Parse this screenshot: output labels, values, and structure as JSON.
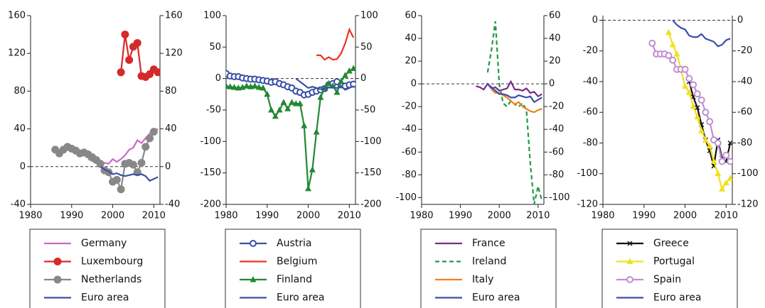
{
  "chart_data": [
    {
      "type": "line",
      "xlim": [
        1980,
        2011.5
      ],
      "xticks": [
        1980,
        1990,
        2000,
        2010
      ],
      "ylim": [
        -40,
        160
      ],
      "yticks": [
        -40,
        0,
        40,
        80,
        120,
        160
      ],
      "y2lim": [
        -40,
        160
      ],
      "y2ticks": [
        -40,
        0,
        40,
        80,
        120,
        160
      ],
      "zero_line": true,
      "series": [
        {
          "name": "Germany",
          "color": "#cc66cc",
          "marker": "none",
          "dash": false,
          "x": [
            1994,
            1995,
            1996,
            1997,
            1998,
            1999,
            2000,
            2001,
            2002,
            2003,
            2004,
            2005,
            2006,
            2007,
            2008,
            2009,
            2010,
            2011
          ],
          "values": [
            8,
            6,
            5,
            1,
            4,
            3,
            8,
            5,
            8,
            12,
            18,
            20,
            28,
            25,
            30,
            35,
            38,
            40
          ]
        },
        {
          "name": "Luxembourg",
          "color": "#d42a2a",
          "marker": "circle",
          "dash": false,
          "x": [
            2002,
            2003,
            2004,
            2005,
            2006,
            2007,
            2008,
            2009,
            2010,
            2011
          ],
          "values": [
            100,
            140,
            113,
            127,
            131,
            96,
            95,
            98,
            103,
            100
          ]
        },
        {
          "name": "Netherlands",
          "color": "#888888",
          "marker": "circle",
          "dash": false,
          "x": [
            1986,
            1987,
            1988,
            1989,
            1990,
            1991,
            1992,
            1993,
            1994,
            1995,
            1996,
            1997,
            1998,
            1999,
            2000,
            2001,
            2002,
            2003,
            2004,
            2005,
            2006,
            2007,
            2008,
            2009,
            2010
          ],
          "values": [
            18,
            14,
            18,
            21,
            19,
            17,
            14,
            15,
            13,
            10,
            7,
            3,
            -4,
            -6,
            -16,
            -14,
            -24,
            3,
            4,
            2,
            -6,
            4,
            21,
            30,
            37
          ]
        },
        {
          "name": "Euro area",
          "color": "#3a4fa8",
          "marker": "none",
          "dash": false,
          "x": [
            1997,
            1998,
            1999,
            2000,
            2001,
            2002,
            2003,
            2004,
            2005,
            2006,
            2007,
            2008,
            2009,
            2010,
            2011
          ],
          "values": [
            0,
            -3,
            -5,
            -8,
            -7,
            -9,
            -10,
            -9,
            -8,
            -9,
            -8,
            -10,
            -15,
            -13,
            -11
          ]
        }
      ]
    },
    {
      "type": "line",
      "xlim": [
        1980,
        2011.5
      ],
      "xticks": [
        1980,
        1990,
        2000,
        2010
      ],
      "ylim": [
        -200,
        100
      ],
      "yticks": [
        -200,
        -150,
        -100,
        -50,
        0,
        50,
        100
      ],
      "y2lim": [
        -200,
        100
      ],
      "y2ticks": [
        -200,
        -150,
        -100,
        -50,
        0,
        50,
        100
      ],
      "zero_line": true,
      "series": [
        {
          "name": "Austria",
          "color": "#3a4fa8",
          "marker": "open-circle",
          "dash": false,
          "x": [
            1980,
            1981,
            1982,
            1983,
            1984,
            1985,
            1986,
            1987,
            1988,
            1989,
            1990,
            1991,
            1992,
            1993,
            1994,
            1995,
            1996,
            1997,
            1998,
            1999,
            2000,
            2001,
            2002,
            2003,
            2004,
            2005,
            2006,
            2007,
            2008,
            2009,
            2010,
            2011
          ],
          "values": [
            8,
            4,
            3,
            3,
            1,
            0,
            -1,
            -1,
            -2,
            -3,
            -4,
            -6,
            -5,
            -8,
            -10,
            -13,
            -15,
            -20,
            -22,
            -26,
            -25,
            -22,
            -20,
            -18,
            -16,
            -10,
            -8,
            -5,
            -10,
            -12,
            -10,
            -9
          ]
        },
        {
          "name": "Belgium",
          "color": "#ee3322",
          "marker": "none",
          "dash": false,
          "x": [
            2002,
            2003,
            2004,
            2005,
            2006,
            2007,
            2008,
            2009,
            2010,
            2011
          ],
          "values": [
            37,
            37,
            30,
            34,
            30,
            31,
            40,
            56,
            78,
            65
          ]
        },
        {
          "name": "Finland",
          "color": "#228833",
          "marker": "triangle",
          "dash": false,
          "x": [
            1980,
            1981,
            1982,
            1983,
            1984,
            1985,
            1986,
            1987,
            1988,
            1989,
            1990,
            1991,
            1992,
            1993,
            1994,
            1995,
            1996,
            1997,
            1998,
            1999,
            2000,
            2001,
            2002,
            2003,
            2004,
            2005,
            2006,
            2007,
            2008,
            2009,
            2010,
            2011
          ],
          "values": [
            -12,
            -13,
            -14,
            -15,
            -14,
            -12,
            -13,
            -12,
            -14,
            -15,
            -25,
            -50,
            -60,
            -50,
            -38,
            -48,
            -38,
            -40,
            -40,
            -75,
            -175,
            -145,
            -85,
            -30,
            -15,
            -8,
            -12,
            -22,
            -5,
            5,
            12,
            16
          ]
        },
        {
          "name": "Euro area",
          "color": "#3a4fa8",
          "marker": "none",
          "dash": false,
          "x": [
            1997,
            1998,
            1999,
            2000,
            2001,
            2002,
            2003,
            2004,
            2005,
            2006,
            2007,
            2008,
            2009,
            2010,
            2011
          ],
          "values": [
            0,
            -5,
            -10,
            -15,
            -13,
            -15,
            -17,
            -16,
            -14,
            -14,
            -15,
            -12,
            -18,
            -15,
            -12
          ]
        }
      ]
    },
    {
      "type": "line",
      "xlim": [
        1980,
        2011.5
      ],
      "xticks": [
        1980,
        1990,
        2000,
        2010
      ],
      "ylim": [
        -106,
        60
      ],
      "yticks": [
        -100,
        -80,
        -60,
        -40,
        -20,
        0,
        20,
        40,
        60
      ],
      "y2lim": [
        -106,
        60
      ],
      "y2ticks": [
        -100,
        -80,
        -60,
        -40,
        -20,
        0,
        20,
        40,
        60
      ],
      "zero_line": true,
      "series": [
        {
          "name": "France",
          "color": "#7a2a8a",
          "marker": "none",
          "dash": false,
          "x": [
            1994,
            1995,
            1996,
            1997,
            1998,
            1999,
            2000,
            2001,
            2002,
            2003,
            2004,
            2005,
            2006,
            2007,
            2008,
            2009,
            2010,
            2011
          ],
          "values": [
            -2,
            -3,
            -5,
            0,
            -4,
            -3,
            -6,
            -5,
            -4,
            2,
            -5,
            -5,
            -6,
            -4,
            -8,
            -7,
            -11,
            -9
          ]
        },
        {
          "name": "Ireland",
          "color": "#22994a",
          "marker": "none",
          "dash": true,
          "x": [
            1997,
            1998,
            1999,
            2000,
            2001,
            2002,
            2003,
            2004,
            2005,
            2006,
            2007,
            2008,
            2009,
            2010,
            2011
          ],
          "values": [
            10,
            30,
            55,
            0,
            -17,
            -20,
            -15,
            -18,
            -20,
            -17,
            -23,
            -70,
            -106,
            -90,
            -103
          ]
        },
        {
          "name": "Italy",
          "color": "#f08020",
          "marker": "none",
          "dash": false,
          "x": [
            1998,
            1999,
            2000,
            2001,
            2002,
            2003,
            2004,
            2005,
            2006,
            2007,
            2008,
            2009,
            2010,
            2011
          ],
          "values": [
            -5,
            -8,
            -8,
            -10,
            -12,
            -15,
            -18,
            -16,
            -20,
            -22,
            -24,
            -25,
            -23,
            -22
          ]
        },
        {
          "name": "Euro area",
          "color": "#3a4fa8",
          "marker": "none",
          "dash": false,
          "x": [
            1997,
            1998,
            1999,
            2000,
            2001,
            2002,
            2003,
            2004,
            2005,
            2006,
            2007,
            2008,
            2009,
            2010,
            2011
          ],
          "values": [
            0,
            -3,
            -6,
            -9,
            -9,
            -10,
            -12,
            -12,
            -10,
            -11,
            -12,
            -11,
            -16,
            -14,
            -12
          ]
        }
      ]
    },
    {
      "type": "line",
      "xlim": [
        1980,
        2011.5
      ],
      "xticks": [
        1980,
        1990,
        2000,
        2010
      ],
      "ylim": [
        -120,
        3
      ],
      "yticks": [
        -120,
        -100,
        -80,
        -60,
        -40,
        -20,
        0
      ],
      "y2lim": [
        -120,
        3
      ],
      "y2ticks": [
        -120,
        -100,
        -80,
        -60,
        -40,
        -20,
        0
      ],
      "zero_line": true,
      "series": [
        {
          "name": "Greece",
          "color": "#111111",
          "marker": "x",
          "dash": false,
          "x": [
            2001,
            2002,
            2003,
            2004,
            2005,
            2006,
            2007,
            2008,
            2009,
            2010,
            2011
          ],
          "values": [
            -40,
            -50,
            -57,
            -68,
            -78,
            -85,
            -95,
            -78,
            -90,
            -92,
            -80
          ]
        },
        {
          "name": "Portugal",
          "color": "#f0e020",
          "marker": "triangle",
          "dash": false,
          "x": [
            1996,
            1997,
            1998,
            1999,
            2000,
            2001,
            2002,
            2003,
            2004,
            2005,
            2006,
            2007,
            2008,
            2009,
            2010,
            2011
          ],
          "values": [
            -8,
            -16,
            -22,
            -32,
            -43,
            -47,
            -56,
            -63,
            -72,
            -78,
            -82,
            -92,
            -100,
            -110,
            -106,
            -103
          ]
        },
        {
          "name": "Spain",
          "color": "#c090d0",
          "marker": "open-circle",
          "dash": false,
          "x": [
            1992,
            1993,
            1994,
            1995,
            1996,
            1997,
            1998,
            1999,
            2000,
            2001,
            2002,
            2003,
            2004,
            2005,
            2006,
            2007,
            2008,
            2009,
            2010,
            2011
          ],
          "values": [
            -15,
            -22,
            -22,
            -22,
            -23,
            -26,
            -32,
            -32,
            -32,
            -38,
            -42,
            -48,
            -52,
            -60,
            -66,
            -78,
            -80,
            -92,
            -88,
            -92
          ]
        },
        {
          "name": "Euro area",
          "color": "#3a4fa8",
          "marker": "none",
          "dash": false,
          "x": [
            1997,
            1998,
            1999,
            2000,
            2001,
            2002,
            2003,
            2004,
            2005,
            2006,
            2007,
            2008,
            2009,
            2010,
            2011
          ],
          "values": [
            0,
            -3,
            -5,
            -6,
            -10,
            -11,
            -11,
            -9,
            -12,
            -13,
            -14,
            -17,
            -16,
            -13,
            -12
          ]
        }
      ]
    }
  ]
}
